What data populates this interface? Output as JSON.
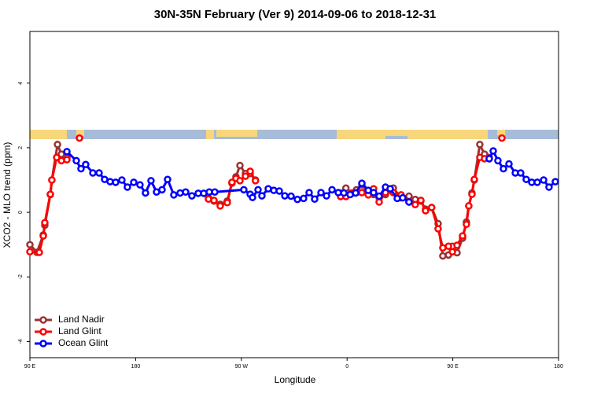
{
  "chart_data": {
    "type": "line",
    "title": "30N-35N February (Ver 9)   2014-09-06 to 2018-12-31",
    "x_label": "Longitude",
    "y_label": "XCO2 - MLO trend (ppm)",
    "xlim": [
      90,
      540
    ],
    "xticks": [
      {
        "value": 90,
        "label": "90 E"
      },
      180,
      {
        "value": 270,
        "label": "90 W"
      },
      {
        "value": 360,
        "label": "0"
      },
      {
        "value": 450,
        "label": "90 E"
      },
      {
        "value": 540,
        "label": "180"
      }
    ],
    "ylim": [
      -4.5,
      5.6
    ],
    "yticks": [
      -4,
      -2,
      0,
      2,
      4
    ],
    "legend": "bottomleft",
    "series": [
      {
        "name": "Land Nadir",
        "color": "#993333",
        "x": [
          90,
          96,
          101.4,
          102.7,
          107.4,
          108.7,
          113.5,
          116.8,
          121.5,
          200,
          242,
          246.7,
          252,
          258,
          262,
          265.4,
          268.8,
          273.5,
          277.5,
          282,
          320,
          354.5,
          359,
          364,
          368,
          372.6,
          378,
          382.6,
          387.3,
          392.7,
          399.4,
          406,
          412.7,
          418,
          422.8,
          426.8,
          432,
          437.5,
          441.5,
          446.3,
          449.6,
          453.6,
          458.3,
          461.6,
          463.6,
          466.3,
          468.3,
          473,
          477,
          481
        ],
        "values": [
          -1.0,
          -1.24,
          -0.7,
          -0.4,
          0.55,
          1.0,
          2.1,
          1.8,
          1.7,
          null,
          0.45,
          0.35,
          0.25,
          0.35,
          0.9,
          1.1,
          1.45,
          1.2,
          1.2,
          1.0,
          null,
          0.6,
          0.75,
          0.6,
          0.7,
          0.85,
          0.6,
          0.55,
          0.45,
          0.55,
          0.75,
          0.45,
          0.5,
          0.4,
          0.35,
          0.1,
          0.15,
          -0.35,
          -1.35,
          -1.32,
          -1.05,
          -1.25,
          -0.8,
          -0.3,
          0.2,
          0.6,
          1.0,
          2.1,
          1.8,
          1.7
        ]
      },
      {
        "name": "Land Glint",
        "color": "#ff0000",
        "x": [
          90,
          98,
          101.4,
          102.7,
          107.4,
          108.7,
          112.8,
          116.8,
          121.5,
          125,
          132.2,
          200,
          242,
          246.7,
          252,
          258,
          262,
          265.4,
          268.8,
          273.5,
          277.5,
          282,
          320,
          354.5,
          359,
          364,
          368,
          372.6,
          378,
          382.6,
          387.3,
          392.7,
          399.4,
          406,
          412.7,
          418,
          422.8,
          426.8,
          432,
          437.5,
          441.5,
          446.3,
          449.6,
          453.6,
          458.3,
          461.6,
          463.6,
          466.3,
          468.3,
          473,
          477,
          481,
          486,
          491.8
        ],
        "values": [
          -1.22,
          -1.24,
          -0.73,
          -0.32,
          0.56,
          1.0,
          1.7,
          1.6,
          1.63,
          null,
          2.3,
          null,
          0.41,
          0.37,
          0.2,
          0.3,
          0.93,
          1.05,
          0.98,
          1.12,
          1.27,
          0.98,
          null,
          0.49,
          0.49,
          0.59,
          0.61,
          0.61,
          0.54,
          0.73,
          0.32,
          0.61,
          0.61,
          0.54,
          0.32,
          0.24,
          0.37,
          0.05,
          0.15,
          -0.51,
          -1.1,
          -1.05,
          -1.22,
          -1.02,
          -0.73,
          -0.37,
          0.2,
          0.56,
          1.02,
          1.7,
          1.66,
          1.66,
          null,
          2.3
        ]
      },
      {
        "name": "Ocean Glint",
        "color": "#0000ff",
        "x": [
          121.5,
          129.5,
          133.5,
          137.5,
          143.6,
          148.9,
          153.6,
          158.3,
          163,
          168.3,
          173,
          178.4,
          183.7,
          188.4,
          193.1,
          197.8,
          202.5,
          207.2,
          212.5,
          217.9,
          222.6,
          227.9,
          233.3,
          238,
          242.7,
          247.4,
          272.1,
          277.5,
          279.5,
          284.2,
          287.5,
          292.9,
          297.6,
          302.3,
          307,
          312.3,
          317.7,
          323,
          327.7,
          332.4,
          337.8,
          342.5,
          347.2,
          352.5,
          357.3,
          362.6,
          367.3,
          372.6,
          378,
          382.6,
          387.3,
          392.7,
          396.7,
          402.7,
          407.4,
          412.7,
          450,
          481,
          484.4,
          488.4,
          493.1,
          497.8,
          503.2,
          507.8,
          512.5,
          517.2,
          521.9,
          527.3,
          531.9,
          537.3
        ],
        "values": [
          1.88,
          1.6,
          1.35,
          1.48,
          1.22,
          1.22,
          1.02,
          0.95,
          0.93,
          1.0,
          0.78,
          0.93,
          0.85,
          0.6,
          0.98,
          0.63,
          0.7,
          1.02,
          0.54,
          0.6,
          0.63,
          0.51,
          0.59,
          0.59,
          0.63,
          0.63,
          0.7,
          0.56,
          0.46,
          0.7,
          0.51,
          0.73,
          0.68,
          0.66,
          0.51,
          0.5,
          0.4,
          0.43,
          0.61,
          0.41,
          0.61,
          0.51,
          0.7,
          0.61,
          0.6,
          0.55,
          0.6,
          0.9,
          0.68,
          0.61,
          0.5,
          0.78,
          0.73,
          0.43,
          0.45,
          0.32,
          null,
          1.66,
          1.9,
          1.6,
          1.35,
          1.5,
          1.22,
          1.22,
          1.02,
          0.93,
          0.93,
          1.0,
          0.78,
          0.95
        ]
      }
    ]
  }
}
